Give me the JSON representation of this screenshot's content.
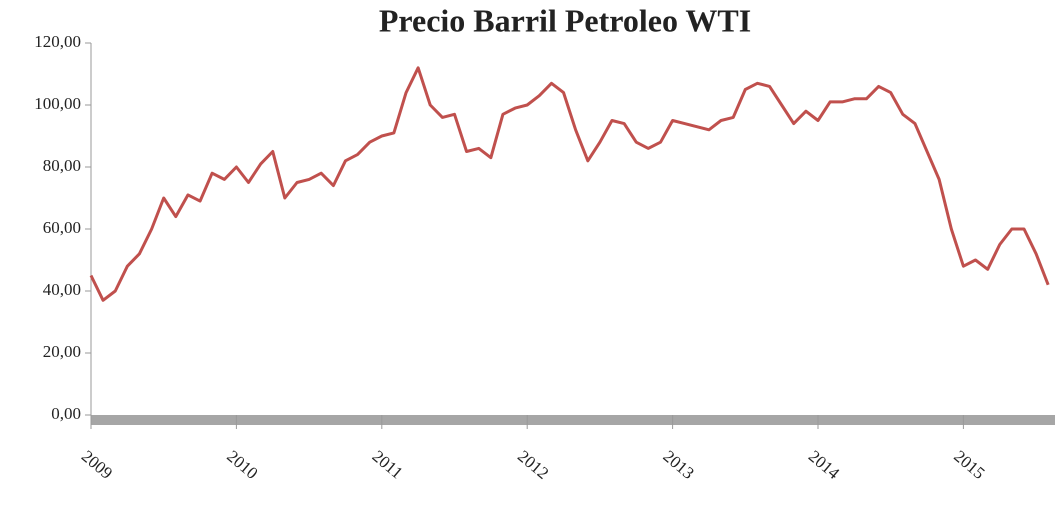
{
  "chart_data": {
    "type": "line",
    "title": "Precio Barril Petroleo WTI",
    "x": [
      2009,
      2009.083,
      2009.167,
      2009.25,
      2009.333,
      2009.417,
      2009.5,
      2009.583,
      2009.667,
      2009.75,
      2009.833,
      2009.917,
      2010,
      2010.083,
      2010.167,
      2010.25,
      2010.333,
      2010.417,
      2010.5,
      2010.583,
      2010.667,
      2010.75,
      2010.833,
      2010.917,
      2011,
      2011.083,
      2011.167,
      2011.25,
      2011.333,
      2011.417,
      2011.5,
      2011.583,
      2011.667,
      2011.75,
      2011.833,
      2011.917,
      2012,
      2012.083,
      2012.167,
      2012.25,
      2012.333,
      2012.417,
      2012.5,
      2012.583,
      2012.667,
      2012.75,
      2012.833,
      2012.917,
      2013,
      2013.083,
      2013.167,
      2013.25,
      2013.333,
      2013.417,
      2013.5,
      2013.583,
      2013.667,
      2013.75,
      2013.833,
      2013.917,
      2014,
      2014.083,
      2014.167,
      2014.25,
      2014.333,
      2014.417,
      2014.5,
      2014.583,
      2014.667,
      2014.75,
      2014.833,
      2014.917,
      2015,
      2015.083,
      2015.167,
      2015.25,
      2015.333,
      2015.417,
      2015.5,
      2015.583
    ],
    "series": [
      {
        "name": "WTI",
        "color": "#c0504d",
        "values": [
          45,
          37,
          40,
          48,
          52,
          60,
          70,
          64,
          71,
          69,
          78,
          76,
          80,
          75,
          81,
          85,
          70,
          75,
          76,
          78,
          74,
          82,
          84,
          88,
          90,
          91,
          104,
          112,
          100,
          96,
          97,
          85,
          86,
          83,
          97,
          99,
          100,
          103,
          107,
          104,
          92,
          82,
          88,
          95,
          94,
          88,
          86,
          88,
          95,
          94,
          93,
          92,
          95,
          96,
          105,
          107,
          106,
          100,
          94,
          98,
          95,
          101,
          101,
          102,
          102,
          106,
          104,
          97,
          94,
          85,
          76,
          60,
          48,
          50,
          47,
          55,
          60,
          60,
          52,
          42
        ]
      }
    ],
    "xlim": [
      2009,
      2015.63
    ],
    "xticks": [
      2009,
      2010,
      2011,
      2012,
      2013,
      2014,
      2015
    ],
    "ylim": [
      0,
      120
    ],
    "yticks": [
      {
        "value": 0,
        "label": "0,00"
      },
      {
        "value": 20,
        "label": "20,00"
      },
      {
        "value": 40,
        "label": "40,00"
      },
      {
        "value": 60,
        "label": "60,00"
      },
      {
        "value": 80,
        "label": "80,00"
      },
      {
        "value": 100,
        "label": "100,00"
      },
      {
        "value": 120,
        "label": "120,00"
      }
    ]
  }
}
